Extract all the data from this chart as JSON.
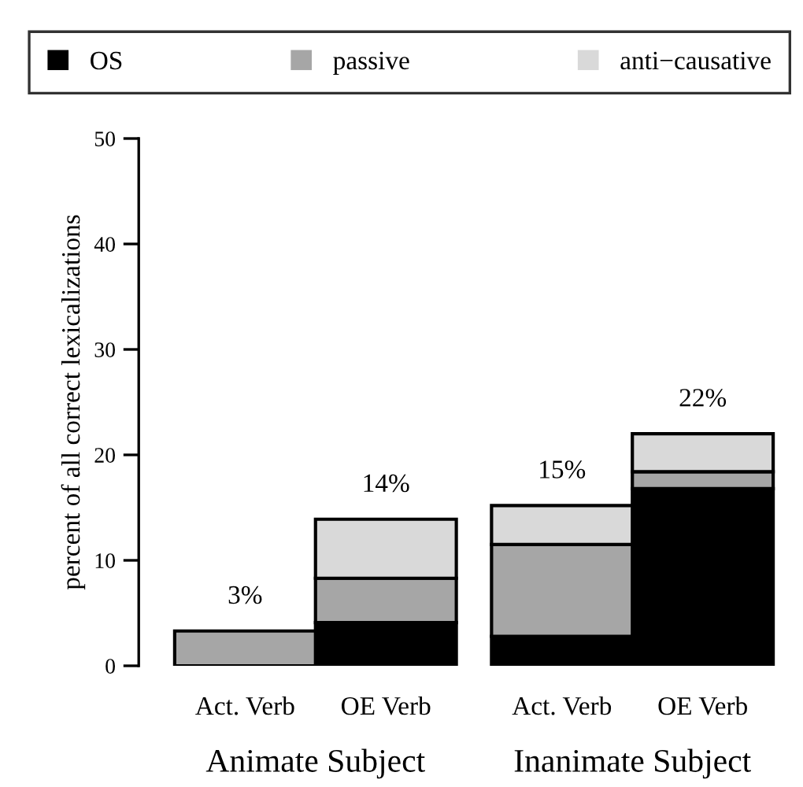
{
  "chart_data": {
    "type": "bar",
    "stacked": true,
    "ylabel": "percent of all correct lexicalizations",
    "categories": [
      "Act. Verb",
      "OE Verb",
      "Act. Verb",
      "OE Verb"
    ],
    "series": [
      {
        "name": "OS",
        "color": "#000000",
        "values": [
          null,
          4.1,
          2.8,
          16.8
        ]
      },
      {
        "name": "passive",
        "color": "#a6a6a6",
        "values": [
          3.3,
          4.2,
          8.7,
          1.6
        ]
      },
      {
        "name": "anti−causative",
        "color": "#d9d9d9",
        "values": [
          null,
          5.6,
          3.7,
          3.6
        ]
      }
    ],
    "totals": [
      "3%",
      "14%",
      "15%",
      "22%"
    ],
    "annotations": [
      "Animate Subject",
      "Inanimate Subject"
    ],
    "ylim": [
      0,
      50
    ],
    "yticks": [
      0,
      10,
      20,
      30,
      40,
      50
    ],
    "grid": false,
    "legend": "top"
  }
}
